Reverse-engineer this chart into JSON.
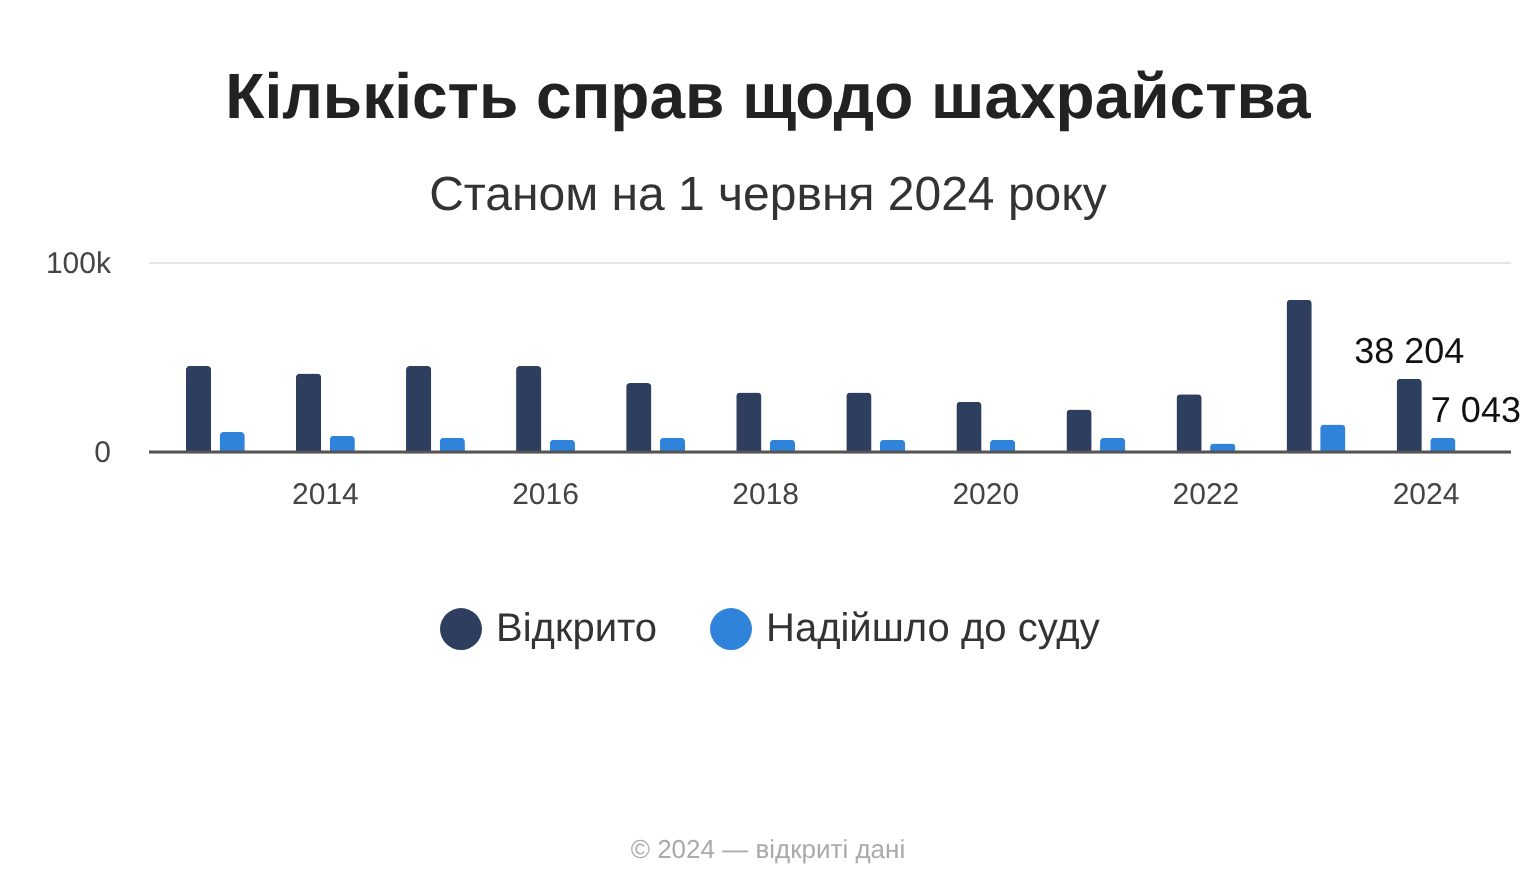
{
  "chart_data": {
    "type": "bar",
    "title": "Кількість справ щодо шахрайства",
    "subtitle": "Станом на 1 червня 2024 року",
    "categories": [
      null,
      "2014",
      null,
      "2016",
      null,
      "2018",
      null,
      "2020",
      null,
      "2022",
      null,
      "2024"
    ],
    "series": [
      {
        "name": "Відкрито",
        "color": "#2e3e5f",
        "values": [
          45000,
          41000,
          45000,
          45000,
          36000,
          31000,
          31000,
          26000,
          22000,
          30000,
          80000,
          38204
        ],
        "value_labels": [
          null,
          null,
          null,
          null,
          null,
          null,
          null,
          null,
          null,
          null,
          null,
          "38 204"
        ]
      },
      {
        "name": "Надійшло до суду",
        "color": "#2f83db",
        "values": [
          10000,
          8000,
          7000,
          6000,
          7000,
          6000,
          6000,
          6000,
          7000,
          4000,
          14000,
          7043
        ],
        "value_labels": [
          null,
          null,
          null,
          null,
          null,
          null,
          null,
          null,
          null,
          null,
          null,
          "7 043"
        ]
      }
    ],
    "ylim": [
      0,
      100000
    ],
    "yticks": [
      0,
      {
        "value": 100000,
        "label": "100k"
      }
    ],
    "grid": "y",
    "legend": "bottom",
    "annotations": [
      "© 2024 — відкриті дані"
    ]
  }
}
